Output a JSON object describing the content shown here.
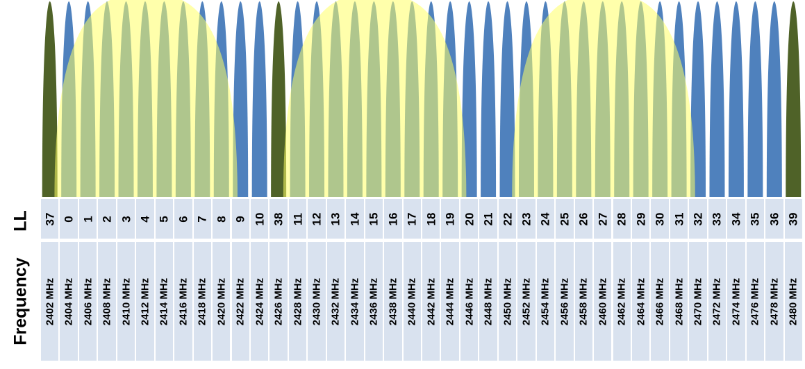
{
  "rows": {
    "ll_label": "LL",
    "frequency_label": "Frequency"
  },
  "colors": {
    "data_channel": "#4f81bd",
    "advertising_channel": "#4f6228",
    "wifi_overlay": "#ffff66",
    "cell_background": "#d9e2ef"
  },
  "channels": [
    {
      "ll": "37",
      "freq": "2402 MHz",
      "kind": "advertising"
    },
    {
      "ll": "0",
      "freq": "2404 MHz",
      "kind": "data"
    },
    {
      "ll": "1",
      "freq": "2406 MHz",
      "kind": "data"
    },
    {
      "ll": "2",
      "freq": "2408 MHz",
      "kind": "data"
    },
    {
      "ll": "3",
      "freq": "2410 MHz",
      "kind": "data"
    },
    {
      "ll": "4",
      "freq": "2412 MHz",
      "kind": "data"
    },
    {
      "ll": "5",
      "freq": "2414 MHz",
      "kind": "data"
    },
    {
      "ll": "6",
      "freq": "2416 MHz",
      "kind": "data"
    },
    {
      "ll": "7",
      "freq": "2418 MHz",
      "kind": "data"
    },
    {
      "ll": "8",
      "freq": "2420 MHz",
      "kind": "data"
    },
    {
      "ll": "9",
      "freq": "2422 MHz",
      "kind": "data"
    },
    {
      "ll": "10",
      "freq": "2424 MHz",
      "kind": "data"
    },
    {
      "ll": "38",
      "freq": "2426 MHz",
      "kind": "advertising"
    },
    {
      "ll": "11",
      "freq": "2428 MHz",
      "kind": "data"
    },
    {
      "ll": "12",
      "freq": "2430 MHz",
      "kind": "data"
    },
    {
      "ll": "13",
      "freq": "2432 MHz",
      "kind": "data"
    },
    {
      "ll": "14",
      "freq": "2434 MHz",
      "kind": "data"
    },
    {
      "ll": "15",
      "freq": "2436 MHz",
      "kind": "data"
    },
    {
      "ll": "16",
      "freq": "2438 MHz",
      "kind": "data"
    },
    {
      "ll": "17",
      "freq": "2440 MHz",
      "kind": "data"
    },
    {
      "ll": "18",
      "freq": "2442 MHz",
      "kind": "data"
    },
    {
      "ll": "19",
      "freq": "2444 MHz",
      "kind": "data"
    },
    {
      "ll": "20",
      "freq": "2446 MHz",
      "kind": "data"
    },
    {
      "ll": "21",
      "freq": "2448 MHz",
      "kind": "data"
    },
    {
      "ll": "22",
      "freq": "2450 MHz",
      "kind": "data"
    },
    {
      "ll": "23",
      "freq": "2452 MHz",
      "kind": "data"
    },
    {
      "ll": "24",
      "freq": "2454 MHz",
      "kind": "data"
    },
    {
      "ll": "25",
      "freq": "2456 MHz",
      "kind": "data"
    },
    {
      "ll": "26",
      "freq": "2458 MHz",
      "kind": "data"
    },
    {
      "ll": "27",
      "freq": "2460 MHz",
      "kind": "data"
    },
    {
      "ll": "28",
      "freq": "2462 MHz",
      "kind": "data"
    },
    {
      "ll": "29",
      "freq": "2464 MHz",
      "kind": "data"
    },
    {
      "ll": "30",
      "freq": "2466 MHz",
      "kind": "data"
    },
    {
      "ll": "31",
      "freq": "2468 MHz",
      "kind": "data"
    },
    {
      "ll": "32",
      "freq": "2470 MHz",
      "kind": "data"
    },
    {
      "ll": "33",
      "freq": "2472 MHz",
      "kind": "data"
    },
    {
      "ll": "34",
      "freq": "2474 MHz",
      "kind": "data"
    },
    {
      "ll": "35",
      "freq": "2476 MHz",
      "kind": "data"
    },
    {
      "ll": "36",
      "freq": "2478 MHz",
      "kind": "data"
    },
    {
      "ll": "39",
      "freq": "2480 MHz",
      "kind": "advertising"
    }
  ],
  "wifi_overlays": [
    {
      "start_channel": 1,
      "end_channel": 10
    },
    {
      "start_channel": 13,
      "end_channel": 22
    },
    {
      "start_channel": 25,
      "end_channel": 34
    }
  ]
}
